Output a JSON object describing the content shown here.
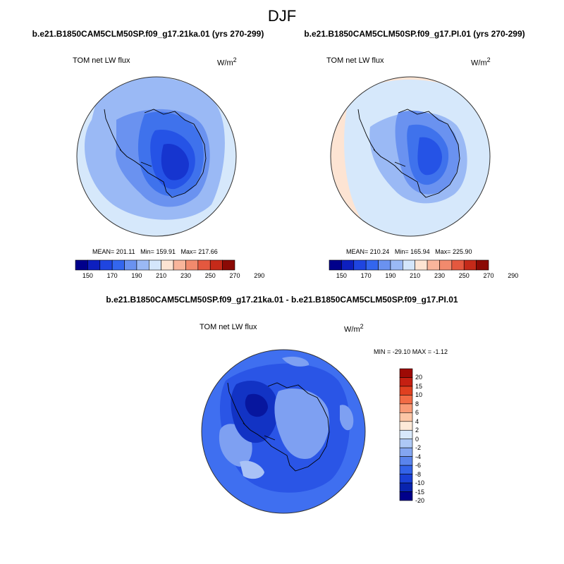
{
  "title": "DJF",
  "panels": [
    {
      "run_title": "b.e21.B1850CAM5CLM50SP.f09_g17.21ka.01 (yrs 270-299)",
      "variable": "TOM net LW flux",
      "units": "W/m",
      "units_exp": "2",
      "mean_label": "MEAN=",
      "mean": "201.11",
      "min_label": "Min=",
      "min": "159.91",
      "max_label": "Max=",
      "max": "217.66"
    },
    {
      "run_title": "b.e21.B1850CAM5CLM50SP.f09_g17.PI.01 (yrs 270-299)",
      "variable": "TOM net LW flux",
      "units": "W/m",
      "units_exp": "2",
      "mean_label": "MEAN=",
      "mean": "210.24",
      "min_label": "Min=",
      "min": "165.94",
      "max_label": "Max=",
      "max": "225.90"
    }
  ],
  "diff": {
    "title": "b.e21.B1850CAM5CLM50SP.f09_g17.21ka.01 - b.e21.B1850CAM5CLM50SP.f09_g17.PI.01",
    "variable": "TOM net LW flux",
    "units": "W/m",
    "units_exp": "2",
    "minmax": "MIN = -29.10 MAX =  -1.12"
  },
  "colorbar_h": {
    "colors": [
      "#00008b",
      "#0d1fbf",
      "#1f45e0",
      "#3366ee",
      "#6a92f0",
      "#9ab9f5",
      "#d4e6fb",
      "#fde4d3",
      "#f9b59b",
      "#f28a6d",
      "#e4583f",
      "#c52a19",
      "#8b0a05"
    ],
    "tick_labels": [
      "150",
      "170",
      "190",
      "210",
      "230",
      "250",
      "270",
      "290"
    ]
  },
  "colorbar_v": {
    "colors": [
      "#9e0a05",
      "#c52012",
      "#e04020",
      "#f26b45",
      "#f99a76",
      "#fcc6a6",
      "#fde9d8",
      "#d8e8fb",
      "#adc8f6",
      "#84a6f1",
      "#5a84ec",
      "#3363e8",
      "#1a40d6",
      "#0823ae",
      "#00008b"
    ],
    "tick_labels": [
      "20",
      "15",
      "10",
      "8",
      "6",
      "4",
      "2",
      "0",
      "-2",
      "-4",
      "-6",
      "-8",
      "-10",
      "-15",
      "-20"
    ]
  },
  "map_colors": {
    "ocean_light": "#d6e8fb",
    "band_pale": "#b8d2f6",
    "level_a": "#9ab9f5",
    "level_b": "#6a92f0",
    "level_c": "#3f72ec",
    "level_d": "#2553e6",
    "level_e": "#1635cf",
    "warm": "#fde4d3",
    "diff_base": "#3f6ff0",
    "diff_mid": "#2a55e6",
    "diff_deep": "#1233c4",
    "diff_darkest": "#07169e",
    "diff_light": "#7ea0f2",
    "diff_pale": "#a9c2f6"
  }
}
